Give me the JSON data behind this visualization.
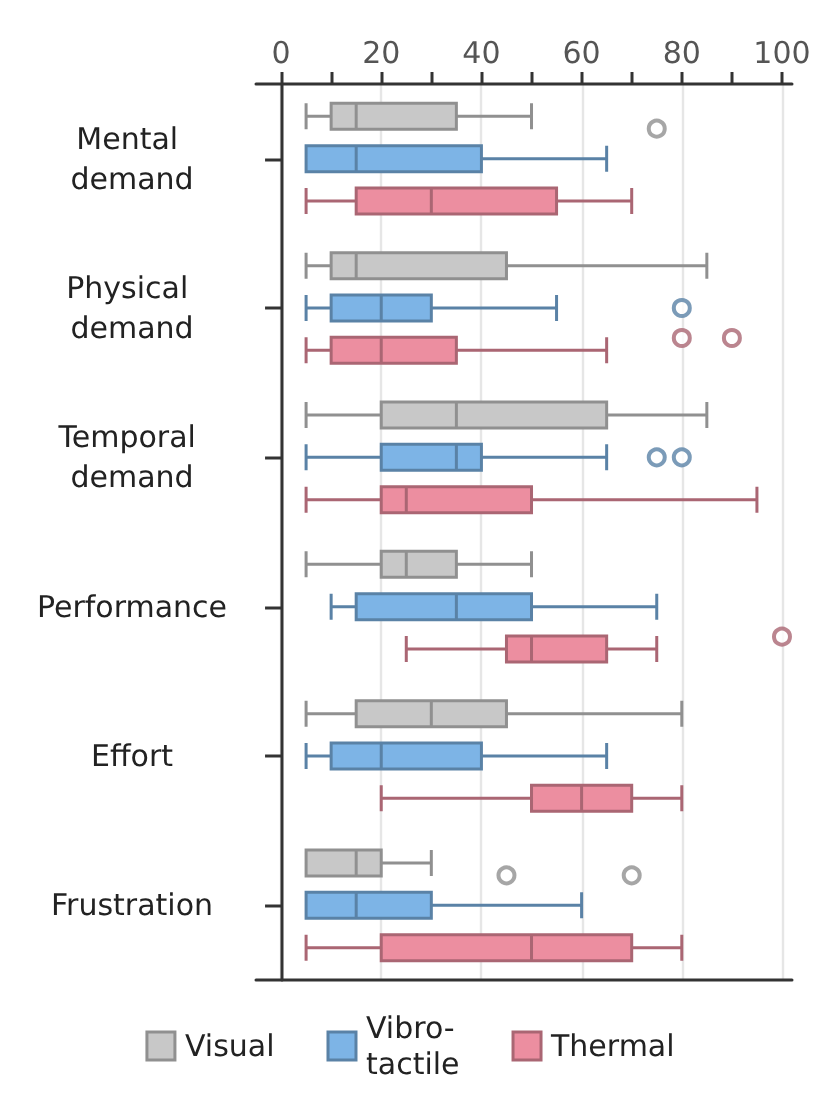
{
  "chart_data": {
    "type": "box",
    "orientation": "horizontal",
    "categories": [
      "Mental demand",
      "Physical demand",
      "Temporal demand",
      "Performance",
      "Effort",
      "Frustration"
    ],
    "xlim": [
      -5,
      102
    ],
    "xticks": [
      0,
      {
        "value": 10,
        "label": null
      },
      20,
      {
        "value": 30,
        "label": null
      },
      40,
      {
        "value": 50,
        "label": null
      },
      60,
      {
        "value": 70,
        "label": null
      },
      80,
      {
        "value": 90,
        "label": null
      },
      100
    ],
    "grid": "x",
    "legend": "bottom",
    "series": [
      {
        "name": "Visual",
        "color": "#c8c8c8",
        "boxes": [
          {
            "low": 5,
            "q1": 10,
            "median": 15,
            "q3": 35,
            "high": 50,
            "outliers": [
              75
            ]
          },
          {
            "low": 5,
            "q1": 10,
            "median": 15,
            "q3": 45,
            "high": 85
          },
          {
            "low": 5,
            "q1": 20,
            "median": 35,
            "q3": 65,
            "high": 85
          },
          {
            "low": 5,
            "q1": 20,
            "median": 25,
            "q3": 35,
            "high": 50
          },
          {
            "low": 5,
            "q1": 15,
            "median": 30,
            "q3": 45,
            "high": 80
          },
          {
            "low": 5,
            "q1": 5,
            "median": 15,
            "q3": 20,
            "high": 30,
            "outliers": [
              45,
              70
            ]
          }
        ]
      },
      {
        "name": "Vibro-tactile",
        "color": "#7db4e6",
        "boxes": [
          {
            "low": 5,
            "q1": 5,
            "median": 15,
            "q3": 40,
            "high": 65
          },
          {
            "low": 5,
            "q1": 10,
            "median": 20,
            "q3": 30,
            "high": 55,
            "outliers": [
              80
            ]
          },
          {
            "low": 5,
            "q1": 20,
            "median": 35,
            "q3": 40,
            "high": 65,
            "outliers": [
              75,
              80
            ]
          },
          {
            "low": 10,
            "q1": 15,
            "median": 35,
            "q3": 50,
            "high": 75
          },
          {
            "low": 5,
            "q1": 10,
            "median": 20,
            "q3": 40,
            "high": 65
          },
          {
            "low": 5,
            "q1": 5,
            "median": 15,
            "q3": 30,
            "high": 60
          }
        ]
      },
      {
        "name": "Thermal",
        "color": "#ec8ea0",
        "boxes": [
          {
            "low": 5,
            "q1": 15,
            "median": 30,
            "q3": 55,
            "high": 70
          },
          {
            "low": 5,
            "q1": 10,
            "median": 20,
            "q3": 35,
            "high": 65,
            "outliers": [
              80,
              90
            ]
          },
          {
            "low": 5,
            "q1": 20,
            "median": 25,
            "q3": 50,
            "high": 95
          },
          {
            "low": 25,
            "q1": 45,
            "median": 50,
            "q3": 65,
            "high": 75,
            "outliers": [
              100
            ]
          },
          {
            "low": 20,
            "q1": 50,
            "median": 60,
            "q3": 70,
            "high": 80
          },
          {
            "low": 5,
            "q1": 20,
            "median": 50,
            "q3": 70,
            "high": 80
          }
        ]
      }
    ]
  }
}
